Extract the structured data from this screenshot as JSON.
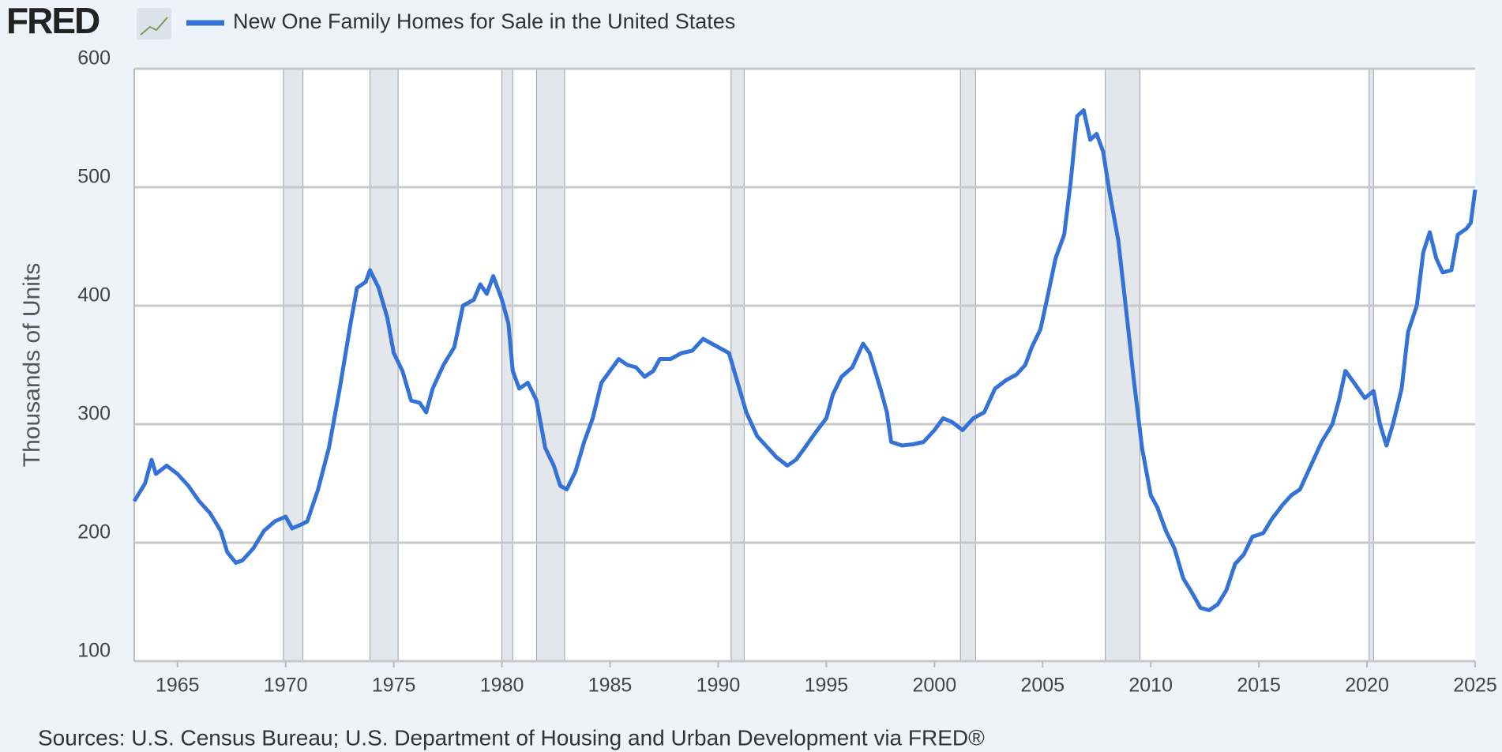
{
  "chart_data": {
    "type": "line",
    "logo": "FRED",
    "ylabel": "Thousands of Units",
    "source": "Sources: U.S. Census Bureau; U.S. Department of Housing and Urban Development via FRED®",
    "xlim": [
      1963,
      2025
    ],
    "xticks": [
      1965,
      1970,
      1975,
      1980,
      1985,
      1990,
      1995,
      2000,
      2005,
      2010,
      2015,
      2020,
      2025
    ],
    "ylim": [
      100,
      600
    ],
    "yticks": [
      100,
      200,
      300,
      400,
      500,
      600
    ],
    "grid": true,
    "recessions": [
      [
        1969.9,
        1970.8
      ],
      [
        1973.9,
        1975.2
      ],
      [
        1980.0,
        1980.5
      ],
      [
        1981.6,
        1982.9
      ],
      [
        1990.6,
        1991.2
      ],
      [
        2001.2,
        2001.9
      ],
      [
        2007.9,
        2009.5
      ],
      [
        2020.1,
        2020.3
      ]
    ],
    "x": [
      1963.0,
      1963.5,
      1963.8,
      1964.0,
      1964.5,
      1965.0,
      1965.5,
      1966.0,
      1966.5,
      1967.0,
      1967.3,
      1967.7,
      1968.0,
      1968.5,
      1969.0,
      1969.5,
      1970.0,
      1970.3,
      1970.8,
      1971.0,
      1971.5,
      1972.0,
      1972.5,
      1973.0,
      1973.3,
      1973.7,
      1973.9,
      1974.3,
      1974.7,
      1975.0,
      1975.4,
      1975.8,
      1976.2,
      1976.5,
      1976.8,
      1977.3,
      1977.8,
      1978.2,
      1978.7,
      1979.0,
      1979.3,
      1979.6,
      1980.0,
      1980.3,
      1980.5,
      1980.8,
      1981.2,
      1981.6,
      1982.0,
      1982.4,
      1982.7,
      1983.0,
      1983.4,
      1983.8,
      1984.2,
      1984.6,
      1985.0,
      1985.4,
      1985.8,
      1986.2,
      1986.6,
      1987.0,
      1987.3,
      1987.8,
      1988.3,
      1988.8,
      1989.3,
      1989.7,
      1990.0,
      1990.5,
      1990.9,
      1991.3,
      1991.8,
      1992.3,
      1992.7,
      1993.2,
      1993.6,
      1994.0,
      1994.5,
      1995.0,
      1995.3,
      1995.7,
      1996.2,
      1996.7,
      1997.0,
      1997.5,
      1997.8,
      1998.0,
      1998.5,
      1999.0,
      1999.5,
      2000.0,
      2000.4,
      2000.8,
      2001.3,
      2001.8,
      2002.3,
      2002.8,
      2003.3,
      2003.8,
      2004.2,
      2004.5,
      2004.9,
      2005.2,
      2005.6,
      2006.0,
      2006.3,
      2006.6,
      2006.9,
      2007.2,
      2007.5,
      2007.8,
      2008.1,
      2008.5,
      2008.9,
      2009.2,
      2009.6,
      2010.0,
      2010.3,
      2010.7,
      2011.1,
      2011.5,
      2011.9,
      2012.3,
      2012.7,
      2013.1,
      2013.5,
      2013.9,
      2014.3,
      2014.7,
      2015.2,
      2015.6,
      2016.1,
      2016.5,
      2016.9,
      2017.4,
      2017.9,
      2018.4,
      2018.7,
      2019.0,
      2019.4,
      2019.9,
      2020.3,
      2020.6,
      2020.9,
      2021.2,
      2021.6,
      2021.9,
      2022.3,
      2022.6,
      2022.9,
      2023.2,
      2023.5,
      2023.9,
      2024.2,
      2024.6,
      2024.8,
      2025.0
    ],
    "series": [
      {
        "name": "New One Family Homes for Sale in the United States",
        "color": "#3572d8",
        "values": [
          235,
          250,
          270,
          258,
          265,
          258,
          248,
          235,
          225,
          210,
          192,
          183,
          185,
          195,
          210,
          218,
          222,
          212,
          216,
          218,
          245,
          280,
          330,
          385,
          415,
          420,
          430,
          415,
          390,
          360,
          345,
          320,
          318,
          310,
          330,
          350,
          365,
          400,
          405,
          418,
          410,
          425,
          405,
          385,
          345,
          330,
          335,
          320,
          280,
          265,
          248,
          245,
          260,
          285,
          305,
          335,
          345,
          355,
          350,
          348,
          340,
          345,
          355,
          355,
          360,
          362,
          372,
          368,
          365,
          360,
          335,
          310,
          290,
          280,
          272,
          265,
          270,
          280,
          293,
          305,
          325,
          340,
          348,
          368,
          360,
          330,
          310,
          285,
          282,
          283,
          285,
          295,
          305,
          302,
          295,
          305,
          310,
          330,
          337,
          342,
          350,
          365,
          380,
          405,
          440,
          460,
          505,
          560,
          565,
          540,
          545,
          530,
          495,
          455,
          390,
          340,
          280,
          240,
          230,
          210,
          195,
          170,
          158,
          145,
          143,
          148,
          160,
          182,
          190,
          205,
          208,
          220,
          232,
          240,
          245,
          265,
          285,
          300,
          320,
          345,
          335,
          322,
          328,
          300,
          282,
          300,
          330,
          378,
          400,
          445,
          462,
          440,
          428,
          430,
          460,
          465,
          470,
          498
        ]
      }
    ]
  }
}
